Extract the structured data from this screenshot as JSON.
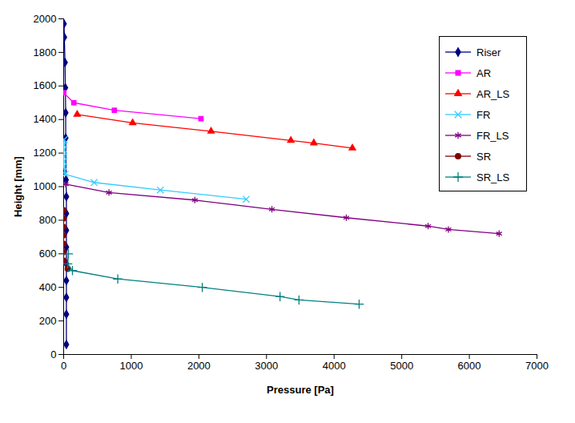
{
  "chart_data": {
    "type": "line",
    "x_label": "Pressure [Pa]",
    "y_label": "Height [mm]",
    "xlim": [
      0,
      7000
    ],
    "xticks": [
      0,
      1000,
      2000,
      3000,
      4000,
      5000,
      6000,
      7000
    ],
    "ylim": [
      0,
      2000
    ],
    "yticks": [
      0,
      200,
      400,
      600,
      800,
      1000,
      1200,
      1400,
      1600,
      1800,
      2000
    ],
    "grid": false,
    "legend": "top-right",
    "series": [
      {
        "name": "Riser",
        "color": "#000080",
        "marker": "diamond",
        "x": [
          40,
          40,
          40,
          40,
          40,
          40,
          40,
          40,
          40,
          35,
          30,
          30,
          25,
          20,
          10,
          5
        ],
        "values": [
          60,
          240,
          340,
          440,
          540,
          640,
          740,
          840,
          940,
          1040,
          1290,
          1440,
          1590,
          1740,
          1890,
          1970
        ]
      },
      {
        "name": "AR",
        "color": "#ff00ff",
        "marker": "square",
        "x": [
          0,
          150,
          750,
          2030
        ],
        "values": [
          1560,
          1500,
          1455,
          1405
        ]
      },
      {
        "name": "AR_LS",
        "color": "#ff0000",
        "marker": "triangle",
        "x": [
          200,
          1020,
          2180,
          3360,
          3700,
          4270
        ],
        "values": [
          1430,
          1380,
          1330,
          1275,
          1260,
          1230
        ]
      },
      {
        "name": "FR",
        "color": "#33ccff",
        "marker": "times",
        "x": [
          5,
          0,
          0,
          0,
          0,
          0,
          20,
          450,
          1430,
          2700
        ],
        "values": [
          1280,
          1250,
          1220,
          1180,
          1150,
          1120,
          1075,
          1025,
          980,
          925
        ]
      },
      {
        "name": "FR_LS",
        "color": "#800080",
        "marker": "asterisk",
        "x": [
          30,
          670,
          1940,
          3080,
          4180,
          5390,
          5690,
          6440
        ],
        "values": [
          1015,
          965,
          920,
          865,
          815,
          765,
          745,
          720
        ]
      },
      {
        "name": "SR",
        "color": "#800000",
        "marker": "circle",
        "x": [
          0,
          0,
          0,
          0,
          0,
          0,
          0,
          60
        ],
        "values": [
          860,
          810,
          760,
          710,
          660,
          610,
          560,
          510
        ]
      },
      {
        "name": "SR_LS",
        "color": "#008080",
        "marker": "plus",
        "x": [
          70,
          60,
          130,
          800,
          2050,
          3200,
          3480,
          4370
        ],
        "values": [
          600,
          540,
          500,
          450,
          400,
          345,
          325,
          300
        ]
      }
    ]
  }
}
